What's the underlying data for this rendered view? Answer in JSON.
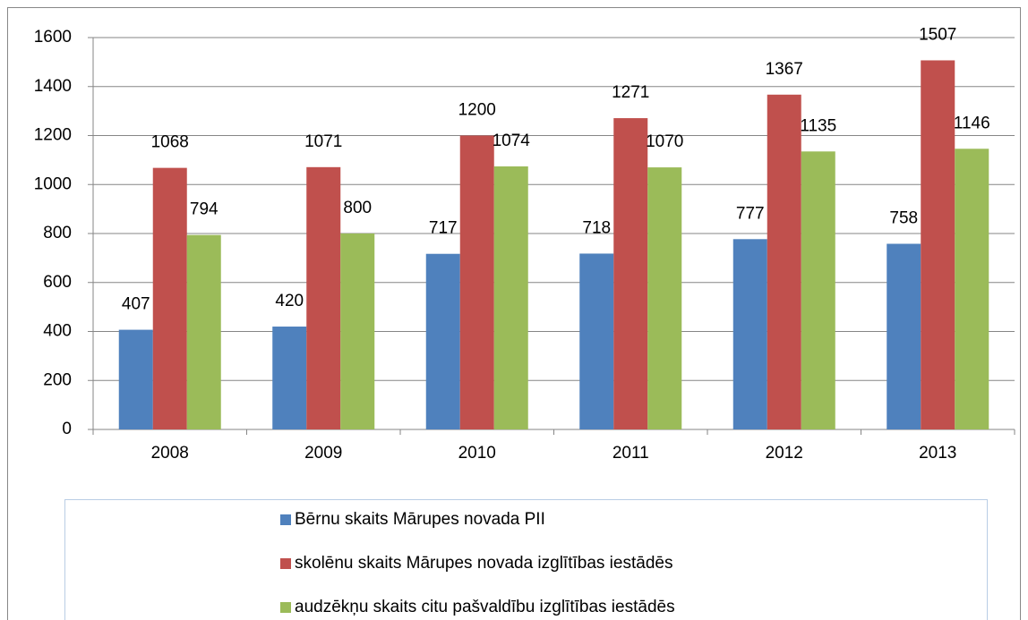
{
  "chart_data": {
    "type": "bar",
    "categories": [
      "2008",
      "2009",
      "2010",
      "2011",
      "2012",
      "2013"
    ],
    "series": [
      {
        "name": "Bērnu skaits Mārupes novada PII",
        "color": "#4f81bd",
        "values": [
          407,
          420,
          717,
          718,
          777,
          758
        ]
      },
      {
        "name": "skolēnu skaits Mārupes novada izglītības iestādēs",
        "color": "#c0504d",
        "values": [
          1068,
          1071,
          1200,
          1271,
          1367,
          1507
        ]
      },
      {
        "name": "audzēkņu skaits citu pašvaldību izglītības iestādēs",
        "color": "#9bbb59",
        "values": [
          794,
          800,
          1074,
          1070,
          1135,
          1146
        ]
      }
    ],
    "ylim": [
      0,
      1600
    ],
    "yticks": [
      0,
      200,
      400,
      600,
      800,
      1000,
      1200,
      1400,
      1600
    ],
    "grid": true,
    "legend": "bottom"
  }
}
